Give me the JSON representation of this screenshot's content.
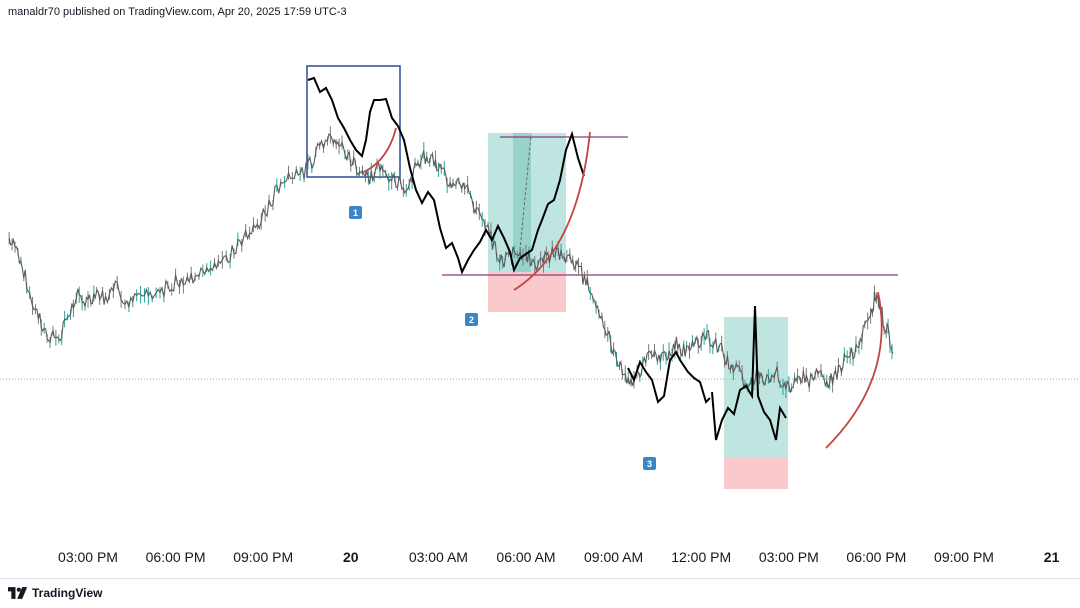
{
  "header": {
    "publisher_line": "manaldr70 published on TradingView.com, Apr 20, 2025 17:59 UTC-3"
  },
  "footer": {
    "brand": "TradingView"
  },
  "colors": {
    "candle": "#5a5a5a",
    "ghost_line": "#000000",
    "profit_zone": "#a8dcd5",
    "loss_zone": "#f8c0c3",
    "level_line": "#8e3a7a",
    "curve": "#c44343",
    "box": "#2b4a9a",
    "marker": "#3a86c8",
    "price_line": "#9aa0ab"
  },
  "chart_data": {
    "type": "line",
    "title": "",
    "xlabel": "",
    "ylabel": "",
    "x_tick_labels": [
      "03:00 PM",
      "06:00 PM",
      "09:00 PM",
      "20",
      "03:00 AM",
      "06:00 AM",
      "09:00 AM",
      "12:00 PM",
      "03:00 PM",
      "06:00 PM",
      "09:00 PM",
      "21"
    ],
    "x_tick_hours": [
      15,
      18,
      21,
      24,
      27,
      30,
      33,
      36,
      39,
      42,
      45,
      48
    ],
    "bold_ticks": [
      "20",
      "21"
    ],
    "x_range_hours": [
      12.3,
      48.6
    ],
    "y_range_relative": [
      0,
      100
    ],
    "grid": false,
    "series": [
      {
        "points": [
          [
            12.3,
            58
          ],
          [
            12.6,
            54
          ],
          [
            12.9,
            47
          ],
          [
            13.2,
            40
          ],
          [
            13.5,
            35
          ],
          [
            13.8,
            33
          ],
          [
            14.1,
            34
          ],
          [
            14.4,
            40
          ],
          [
            14.7,
            44
          ],
          [
            15.0,
            42
          ],
          [
            15.3,
            45
          ],
          [
            15.6,
            43
          ],
          [
            16.0,
            46
          ],
          [
            16.4,
            41
          ],
          [
            16.8,
            44
          ],
          [
            17.2,
            43
          ],
          [
            17.6,
            45
          ],
          [
            18.0,
            47
          ],
          [
            18.4,
            47
          ],
          [
            18.8,
            49
          ],
          [
            19.2,
            52
          ],
          [
            19.6,
            51
          ],
          [
            20.0,
            55
          ],
          [
            20.4,
            58
          ],
          [
            20.8,
            61
          ],
          [
            21.2,
            66
          ],
          [
            21.6,
            72
          ],
          [
            22.0,
            75
          ],
          [
            22.4,
            74
          ],
          [
            22.8,
            79
          ],
          [
            23.2,
            84
          ],
          [
            23.5,
            83
          ],
          [
            23.8,
            79
          ],
          [
            24.1,
            77
          ],
          [
            24.4,
            74
          ],
          [
            24.7,
            73
          ],
          [
            25.0,
            76
          ],
          [
            25.3,
            74
          ],
          [
            25.6,
            72
          ],
          [
            25.9,
            71
          ],
          [
            26.2,
            75
          ],
          [
            26.5,
            78
          ],
          [
            26.8,
            77
          ],
          [
            27.1,
            75
          ],
          [
            27.4,
            72
          ],
          [
            27.7,
            73
          ],
          [
            28.0,
            70
          ],
          [
            28.3,
            65
          ],
          [
            28.6,
            61
          ],
          [
            28.9,
            56
          ],
          [
            29.2,
            52
          ],
          [
            29.5,
            54
          ],
          [
            29.8,
            55
          ],
          [
            30.1,
            53
          ],
          [
            30.4,
            51
          ],
          [
            30.7,
            53
          ],
          [
            31.0,
            55
          ],
          [
            31.3,
            53
          ],
          [
            31.6,
            52
          ],
          [
            31.9,
            49
          ],
          [
            32.2,
            45
          ],
          [
            32.5,
            40
          ],
          [
            32.8,
            34
          ],
          [
            33.1,
            27
          ],
          [
            33.4,
            24
          ],
          [
            33.7,
            22
          ],
          [
            34.0,
            26
          ],
          [
            34.3,
            29
          ],
          [
            34.6,
            27
          ],
          [
            34.9,
            30
          ],
          [
            35.2,
            32
          ],
          [
            35.5,
            29
          ],
          [
            35.8,
            31
          ],
          [
            36.1,
            34
          ],
          [
            36.4,
            32
          ],
          [
            36.7,
            30
          ],
          [
            37.0,
            26
          ],
          [
            37.3,
            24
          ],
          [
            37.6,
            20
          ],
          [
            37.9,
            24
          ],
          [
            38.2,
            22
          ],
          [
            38.5,
            25
          ],
          [
            38.8,
            22
          ],
          [
            39.1,
            20
          ],
          [
            39.4,
            24
          ],
          [
            39.7,
            22
          ],
          [
            40.0,
            24
          ],
          [
            40.3,
            21
          ],
          [
            40.6,
            24
          ],
          [
            40.9,
            27
          ],
          [
            41.2,
            29
          ],
          [
            41.5,
            34
          ],
          [
            41.8,
            40
          ],
          [
            42.0,
            44
          ],
          [
            42.2,
            38
          ],
          [
            42.4,
            34
          ],
          [
            42.6,
            30
          ]
        ]
      }
    ],
    "annotations": {
      "markers": [
        "1",
        "2",
        "3"
      ],
      "ghost_projections": 3,
      "position_zones": 2,
      "horizontal_levels": 2,
      "curves": 3
    }
  }
}
